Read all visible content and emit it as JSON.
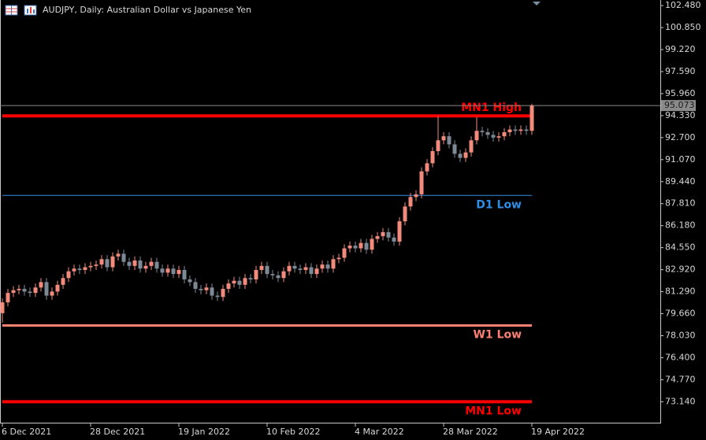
{
  "chart_data": {
    "type": "candlestick",
    "title": "AUDJPY, Daily:  Australian Dollar vs Japanese Yen",
    "categories": [
      "6 Dec 2021",
      null,
      null,
      null,
      null,
      null,
      null,
      null,
      null,
      null,
      null,
      null,
      null,
      null,
      null,
      null,
      "28 Dec 2021",
      null,
      null,
      null,
      null,
      null,
      null,
      null,
      null,
      null,
      null,
      null,
      null,
      null,
      null,
      null,
      "19 Jan 2022",
      null,
      null,
      null,
      null,
      null,
      null,
      null,
      null,
      null,
      null,
      null,
      null,
      null,
      null,
      null,
      "10 Feb 2022",
      null,
      null,
      null,
      null,
      null,
      null,
      null,
      null,
      null,
      null,
      null,
      null,
      null,
      null,
      null,
      "4 Mar 2022",
      null,
      null,
      null,
      null,
      null,
      null,
      null,
      null,
      null,
      null,
      null,
      null,
      null,
      null,
      null,
      "28 Mar 2022",
      null,
      null,
      null,
      null,
      null,
      null,
      null,
      null,
      null,
      null,
      null,
      null,
      null,
      null,
      null,
      "19 Apr 2022"
    ],
    "open": [
      79.7,
      80.5,
      81.2,
      81.4,
      81.5,
      81.3,
      81.2,
      81.6,
      82.0,
      81.0,
      81.3,
      81.8,
      82.3,
      82.8,
      83.0,
      82.9,
      83.1,
      83.2,
      83.3,
      83.7,
      83.1,
      83.9,
      84.1,
      83.5,
      83.2,
      83.6,
      83.0,
      83.2,
      83.5,
      83.0,
      82.7,
      83.0,
      82.6,
      82.9,
      82.2,
      82.0,
      81.5,
      81.4,
      81.6,
      81.0,
      80.9,
      81.5,
      81.9,
      82.1,
      81.8,
      82.3,
      82.2,
      82.9,
      83.2,
      82.6,
      82.5,
      82.3,
      82.8,
      83.2,
      83.0,
      82.9,
      83.1,
      82.6,
      83.0,
      83.3,
      83.0,
      83.7,
      83.8,
      84.5,
      84.7,
      84.5,
      84.9,
      84.4,
      85.2,
      85.4,
      85.7,
      85.3,
      85.0,
      86.5,
      87.6,
      88.3,
      88.5,
      90.2,
      90.8,
      91.7,
      92.5,
      92.8,
      92.2,
      91.5,
      91.2,
      91.6,
      92.5,
      93.2,
      93.1,
      92.9,
      92.7,
      92.8,
      93.1,
      93.3,
      93.2,
      93.3,
      93.2
    ],
    "high": [
      80.8,
      81.5,
      81.7,
      81.8,
      81.8,
      81.6,
      81.9,
      82.3,
      82.3,
      81.6,
      82.1,
      82.6,
      83.1,
      83.3,
      83.3,
      83.4,
      83.5,
      83.6,
      84.0,
      84.0,
      84.2,
      84.4,
      84.4,
      83.8,
      83.9,
      83.9,
      83.5,
      83.8,
      83.8,
      83.3,
      83.3,
      83.3,
      83.2,
      83.2,
      82.5,
      82.3,
      81.8,
      81.9,
      81.9,
      81.3,
      81.8,
      82.2,
      82.4,
      82.4,
      82.6,
      82.6,
      83.2,
      83.5,
      83.5,
      82.9,
      82.8,
      83.1,
      83.5,
      83.5,
      83.3,
      83.4,
      83.4,
      83.3,
      83.6,
      83.6,
      84.0,
      84.1,
      84.8,
      85.0,
      85.0,
      85.2,
      85.2,
      85.5,
      85.7,
      86.0,
      86.0,
      85.6,
      86.8,
      87.9,
      88.6,
      88.8,
      90.5,
      91.1,
      92.0,
      94.3,
      93.1,
      93.1,
      92.5,
      91.8,
      91.9,
      92.8,
      94.2,
      93.5,
      93.4,
      93.2,
      93.1,
      93.4,
      93.6,
      93.6,
      93.6,
      93.6,
      95.2
    ],
    "low": [
      79.0,
      80.2,
      80.9,
      81.1,
      81.0,
      80.9,
      80.9,
      81.3,
      80.7,
      80.7,
      81.0,
      81.5,
      82.0,
      82.5,
      82.6,
      82.6,
      82.8,
      82.9,
      83.0,
      82.8,
      82.8,
      83.6,
      83.2,
      82.9,
      82.9,
      82.7,
      82.7,
      82.9,
      82.7,
      82.4,
      82.4,
      82.3,
      82.3,
      81.9,
      81.7,
      81.2,
      81.1,
      81.1,
      80.7,
      80.6,
      80.6,
      81.2,
      81.6,
      81.5,
      81.5,
      81.9,
      81.9,
      82.6,
      82.3,
      82.2,
      82.0,
      82.0,
      82.5,
      82.7,
      82.6,
      82.6,
      82.3,
      82.3,
      82.7,
      82.7,
      82.7,
      83.4,
      83.5,
      84.2,
      84.2,
      84.2,
      84.1,
      84.1,
      84.9,
      85.1,
      85.0,
      84.7,
      84.7,
      86.2,
      87.3,
      88.0,
      88.2,
      89.9,
      90.5,
      91.4,
      92.2,
      91.9,
      91.2,
      90.9,
      90.9,
      91.3,
      92.2,
      92.8,
      92.6,
      92.4,
      92.4,
      92.5,
      92.8,
      92.9,
      92.9,
      92.9,
      92.9
    ],
    "close": [
      80.5,
      81.2,
      81.4,
      81.5,
      81.3,
      81.2,
      81.6,
      82.0,
      81.0,
      81.3,
      81.8,
      82.3,
      82.8,
      83.0,
      82.9,
      83.1,
      83.2,
      83.3,
      83.7,
      83.1,
      83.9,
      84.1,
      83.5,
      83.2,
      83.6,
      83.0,
      83.2,
      83.5,
      83.0,
      82.7,
      83.0,
      82.6,
      82.9,
      82.2,
      82.0,
      81.5,
      81.4,
      81.6,
      81.0,
      80.9,
      81.5,
      81.9,
      82.1,
      81.8,
      82.3,
      82.2,
      82.9,
      83.2,
      82.6,
      82.5,
      82.3,
      82.8,
      83.2,
      83.0,
      82.9,
      83.1,
      82.6,
      83.0,
      83.3,
      83.0,
      83.7,
      83.8,
      84.5,
      84.7,
      84.5,
      84.9,
      84.4,
      85.2,
      85.4,
      85.7,
      85.3,
      85.0,
      86.5,
      87.6,
      88.3,
      88.5,
      90.2,
      90.8,
      91.7,
      92.5,
      92.8,
      92.2,
      91.5,
      91.2,
      91.6,
      92.5,
      93.2,
      93.1,
      92.9,
      92.7,
      92.8,
      93.1,
      93.3,
      93.2,
      93.3,
      93.2,
      95.07
    ],
    "up_color": "#f28b7d",
    "down_color": "#7d8a96",
    "ylim": [
      71.59,
      102.89
    ],
    "yticks": [
      {
        "value": 102.48,
        "label": "102.480"
      },
      {
        "value": 100.85,
        "label": "100.850"
      },
      {
        "value": 99.22,
        "label": "99.220"
      },
      {
        "value": 97.59,
        "label": "97.590"
      },
      {
        "value": 95.96,
        "label": "95.960"
      },
      {
        "value": 94.33,
        "label": "94.330"
      },
      {
        "value": 92.7,
        "label": "92.700"
      },
      {
        "value": 91.07,
        "label": "91.070"
      },
      {
        "value": 89.44,
        "label": "89.440"
      },
      {
        "value": 87.81,
        "label": "87.810"
      },
      {
        "value": 86.18,
        "label": "86.180"
      },
      {
        "value": 84.55,
        "label": "84.550"
      },
      {
        "value": 82.92,
        "label": "82.920"
      },
      {
        "value": 81.29,
        "label": "81.290"
      },
      {
        "value": 79.66,
        "label": "79.660"
      },
      {
        "value": 78.03,
        "label": "78.030"
      },
      {
        "value": 76.4,
        "label": "76.400"
      },
      {
        "value": 74.77,
        "label": "74.770"
      },
      {
        "value": 73.14,
        "label": "73.140"
      }
    ],
    "levels": [
      {
        "name": "MN1 High",
        "value": 94.31,
        "color": "#ff0000"
      },
      {
        "name": "D1 Low",
        "value": 88.42,
        "color": "#2f8fe8"
      },
      {
        "name": "W1 Low",
        "value": 78.79,
        "color": "#fa8072"
      },
      {
        "name": "MN1 Low",
        "value": 73.14,
        "color": "#ff0000"
      }
    ],
    "current_price": 95.073
  }
}
